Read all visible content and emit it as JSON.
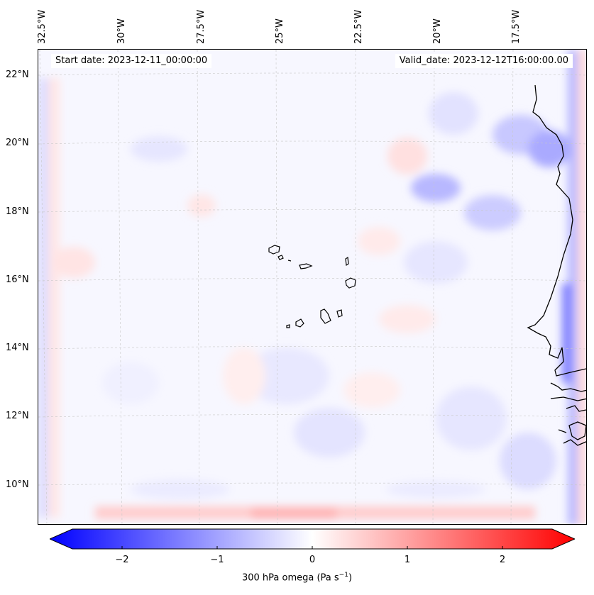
{
  "map": {
    "start_date": "Start date: 2023-12-11_00:00:00",
    "valid_date": "Valid_date: 2023-12-12T16:00:00.00",
    "lon_labels": [
      "32.5°W",
      "30°W",
      "27.5°W",
      "25°W",
      "22.5°W",
      "20°W",
      "17.5°W"
    ],
    "lat_labels": [
      "22°N",
      "20°N",
      "18°N",
      "16°N",
      "14°N",
      "12°N",
      "10°N"
    ],
    "colors": {
      "negative": "#0000ff",
      "neutral": "#ffffff",
      "positive": "#ff0000",
      "coastline": "#000000"
    }
  },
  "colorbar": {
    "ticks": [
      "−2",
      "−1",
      "0",
      "1",
      "2"
    ],
    "label": "300 hPa omega (Pa s",
    "label_sup": "−1",
    "label_end": ")",
    "range": [
      -2.5,
      2.5
    ]
  }
}
